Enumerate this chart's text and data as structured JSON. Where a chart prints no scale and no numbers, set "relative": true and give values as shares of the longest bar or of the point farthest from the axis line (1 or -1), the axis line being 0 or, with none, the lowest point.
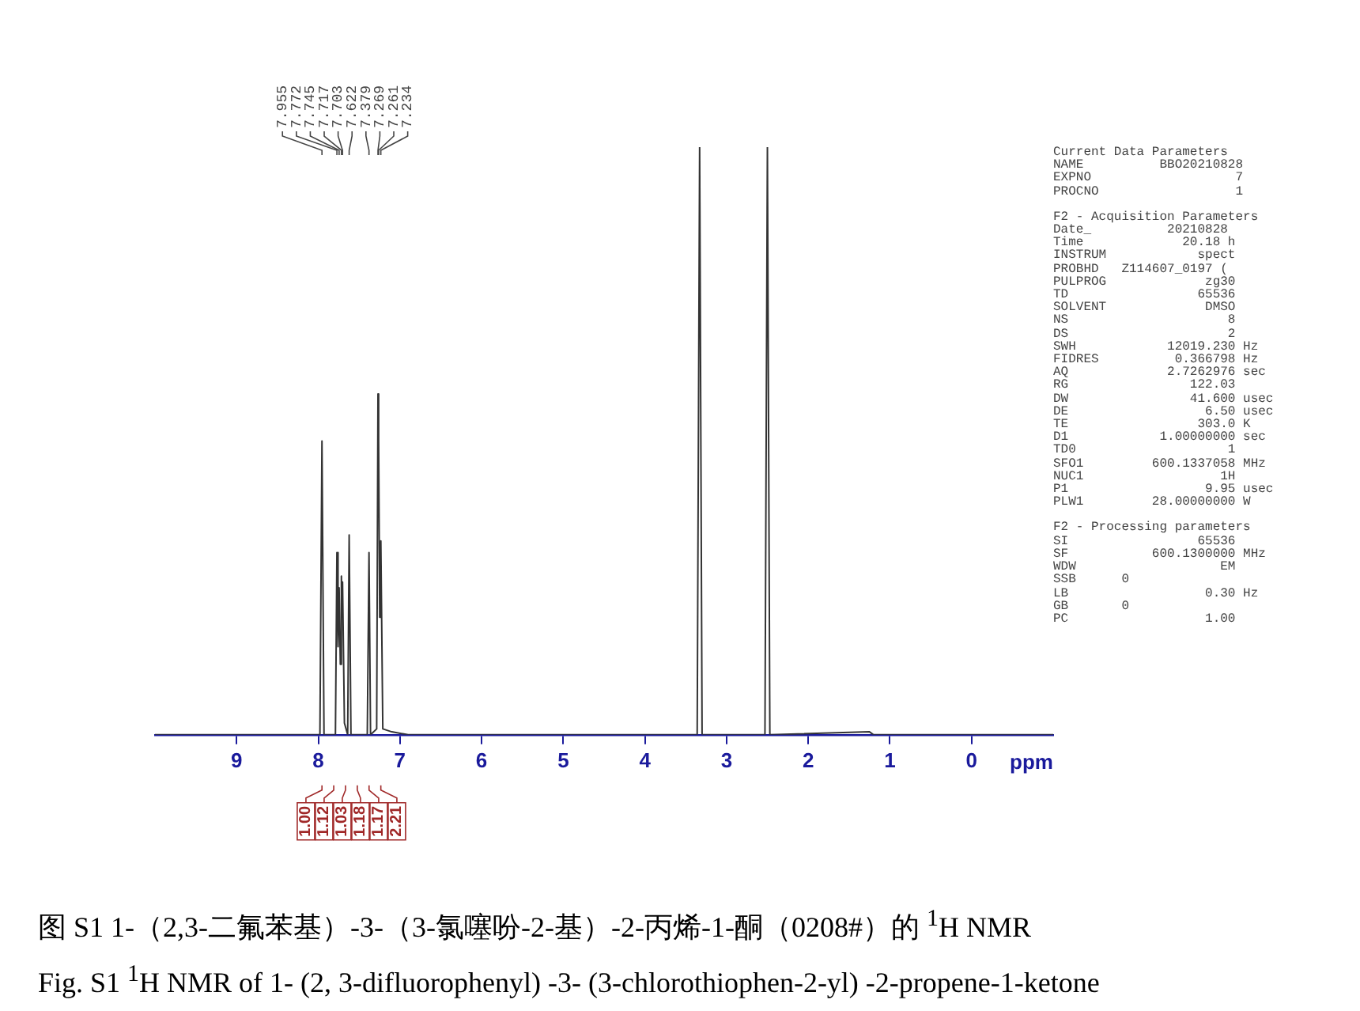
{
  "chart_data": {
    "type": "line",
    "relative": true,
    "xlabel": "ppm",
    "xlim": [
      10,
      -1
    ],
    "xticks": [
      9,
      8,
      7,
      6,
      5,
      4,
      3,
      2,
      1,
      0
    ],
    "color": "#333333",
    "marker": "none",
    "line_style": "solid",
    "grid": false,
    "legend": false,
    "x": [
      10,
      8.2,
      7.98,
      7.955,
      7.93,
      7.79,
      7.772,
      7.758,
      7.745,
      7.73,
      7.717,
      7.71,
      7.703,
      7.68,
      7.64,
      7.622,
      7.6,
      7.4,
      7.379,
      7.36,
      7.285,
      7.269,
      7.261,
      7.248,
      7.234,
      7.21,
      7.1,
      6.9,
      3.36,
      3.33,
      3.3,
      2.53,
      2.5,
      2.47,
      1.25,
      1.2,
      -1
    ],
    "values": [
      0,
      0,
      0,
      0.5,
      0,
      0,
      0.31,
      0.15,
      0.25,
      0.12,
      0.27,
      0.2,
      0.26,
      0.02,
      0,
      0.34,
      0,
      0,
      0.31,
      0,
      0.01,
      0.58,
      0.5,
      0.2,
      0.33,
      0.01,
      0.005,
      0,
      0,
      1,
      0,
      0,
      1,
      0,
      0.005,
      0,
      0
    ],
    "annotations": [
      {
        "text": "7.955",
        "x": 7.955
      },
      {
        "text": "7.772",
        "x": 7.772
      },
      {
        "text": "7.745",
        "x": 7.745
      },
      {
        "text": "7.717",
        "x": 7.717
      },
      {
        "text": "7.703",
        "x": 7.703
      },
      {
        "text": "7.622",
        "x": 7.622
      },
      {
        "text": "7.379",
        "x": 7.379
      },
      {
        "text": "7.269",
        "x": 7.269
      },
      {
        "text": "7.261",
        "x": 7.261
      },
      {
        "text": "7.234",
        "x": 7.234
      },
      "1.00",
      "1.12",
      "1.03",
      "1.18",
      "1.17",
      "2.21",
      "Current Data Parameters\nNAME          BBO20210828\nEXPNO                   7\nPROCNO                  1",
      "F2 - Acquisition Parameters\nDate_          20210828\nTime             20.18 h\nINSTRUM            spect\nPROBHD   Z114607_0197 (\nPULPROG             zg30\nTD                 65536\nSOLVENT             DMSO\nNS                     8\nDS                     2\nSWH            12019.230 Hz\nFIDRES          0.366798 Hz\nAQ             2.7262976 sec\nRG                122.03\nDW                41.600 usec\nDE                  6.50 usec\nTE                 303.0 K\nD1            1.00000000 sec\nTD0                    1\nSFO1         600.1337058 MHz\nNUC1                  1H\nP1                  9.95 usec\nPLW1         28.00000000 W",
      "F2 - Processing parameters\nSI                 65536\nSF           600.1300000 MHz\nWDW                   EM\nSSB      0\nLB                  0.30 Hz\nGB       0\nPC                  1.00",
      "图 S1 1-（2,3-二氟苯基）-3-（3-氯噻吩-2-基）-2-丙烯-1-酮（0208#）的 $^{1}$H NMR",
      "Fig. S1 $^{1}$H NMR of 1- (2, 3-difluorophenyl) -3- (3-chlorothiophen-2-yl) -2-propene-1-ketone"
    ]
  }
}
